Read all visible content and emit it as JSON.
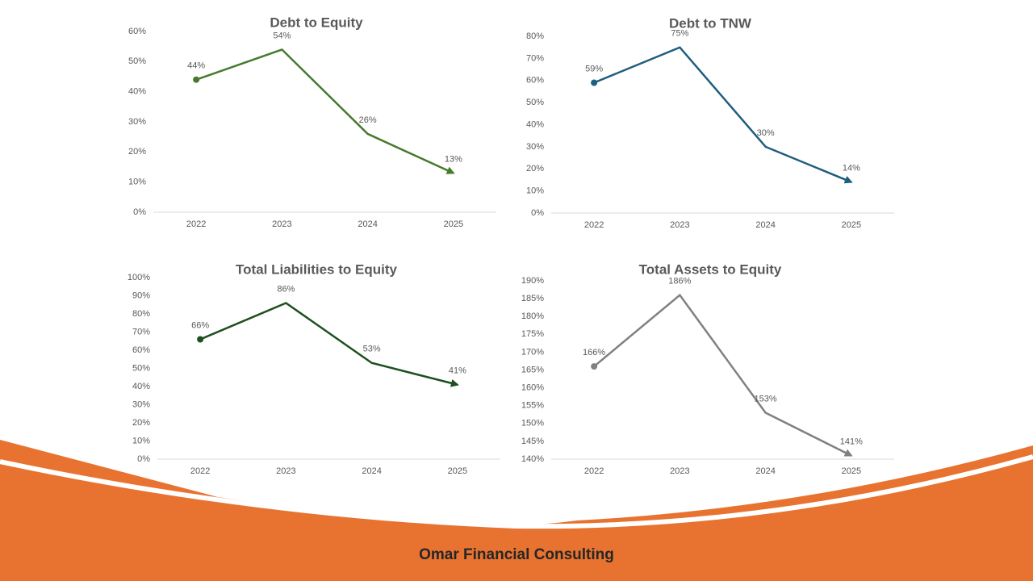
{
  "chart_data": [
    {
      "type": "line",
      "title": "Debt to Equity",
      "categories": [
        "2022",
        "2023",
        "2024",
        "2025"
      ],
      "values": [
        44,
        54,
        26,
        13
      ],
      "value_labels": [
        "44%",
        "54%",
        "26%",
        "13%"
      ],
      "color": "#467a2c",
      "ylim": [
        0,
        60
      ],
      "yticks": [
        {
          "value": 0,
          "label": "0%"
        },
        {
          "value": 10,
          "label": "10%"
        },
        {
          "value": 20,
          "label": "20%"
        },
        {
          "value": 30,
          "label": "30%"
        },
        {
          "value": 40,
          "label": "40%"
        },
        {
          "value": 50,
          "label": "50%"
        },
        {
          "value": 60,
          "label": "60%"
        }
      ],
      "grid": false
    },
    {
      "type": "line",
      "title": "Debt to TNW",
      "categories": [
        "2022",
        "2023",
        "2024",
        "2025"
      ],
      "values": [
        59,
        75,
        30,
        14
      ],
      "value_labels": [
        "59%",
        "75%",
        "30%",
        "14%"
      ],
      "color": "#1f5e7e",
      "ylim": [
        0,
        80
      ],
      "yticks": [
        {
          "value": 0,
          "label": "0%"
        },
        {
          "value": 10,
          "label": "10%"
        },
        {
          "value": 20,
          "label": "20%"
        },
        {
          "value": 30,
          "label": "30%"
        },
        {
          "value": 40,
          "label": "40%"
        },
        {
          "value": 50,
          "label": "50%"
        },
        {
          "value": 60,
          "label": "60%"
        },
        {
          "value": 70,
          "label": "70%"
        },
        {
          "value": 80,
          "label": "80%"
        }
      ],
      "grid": false
    },
    {
      "type": "line",
      "title": "Total Liabilities to Equity",
      "categories": [
        "2022",
        "2023",
        "2024",
        "2025"
      ],
      "values": [
        66,
        86,
        53,
        41
      ],
      "value_labels": [
        "66%",
        "86%",
        "53%",
        "41%"
      ],
      "color": "#1e4f1f",
      "ylim": [
        0,
        100
      ],
      "yticks": [
        {
          "value": 0,
          "label": "0%"
        },
        {
          "value": 10,
          "label": "10%"
        },
        {
          "value": 20,
          "label": "20%"
        },
        {
          "value": 30,
          "label": "30%"
        },
        {
          "value": 40,
          "label": "40%"
        },
        {
          "value": 50,
          "label": "50%"
        },
        {
          "value": 60,
          "label": "60%"
        },
        {
          "value": 70,
          "label": "70%"
        },
        {
          "value": 80,
          "label": "80%"
        },
        {
          "value": 90,
          "label": "90%"
        },
        {
          "value": 100,
          "label": "100%"
        }
      ],
      "grid": false
    },
    {
      "type": "line",
      "title": "Total Assets to Equity",
      "categories": [
        "2022",
        "2023",
        "2024",
        "2025"
      ],
      "values": [
        166,
        186,
        153,
        141
      ],
      "value_labels": [
        "166%",
        "186%",
        "153%",
        "141%"
      ],
      "color": "#808080",
      "ylim": [
        140,
        190
      ],
      "yticks": [
        {
          "value": 140,
          "label": "140%"
        },
        {
          "value": 145,
          "label": "145%"
        },
        {
          "value": 150,
          "label": "150%"
        },
        {
          "value": 155,
          "label": "155%"
        },
        {
          "value": 160,
          "label": "160%"
        },
        {
          "value": 165,
          "label": "165%"
        },
        {
          "value": 170,
          "label": "170%"
        },
        {
          "value": 175,
          "label": "175%"
        },
        {
          "value": 180,
          "label": "180%"
        },
        {
          "value": 185,
          "label": "185%"
        },
        {
          "value": 190,
          "label": "190%"
        }
      ],
      "grid": false
    }
  ],
  "footer": "Omar Financial Consulting"
}
